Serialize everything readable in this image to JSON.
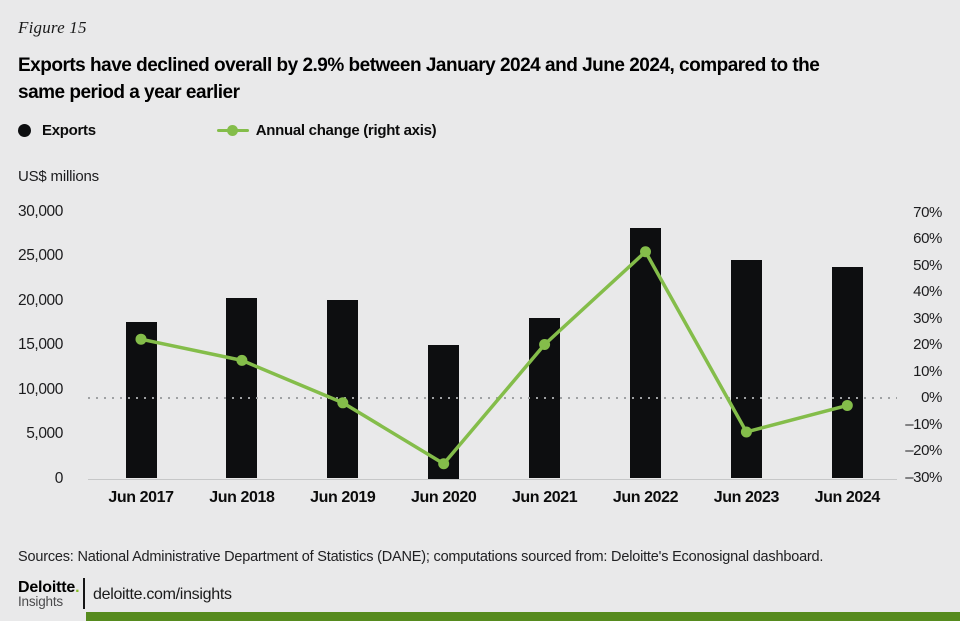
{
  "figure_label": "Figure 15",
  "title_lines": [
    "Exports have declined overall by 2.9% between January 2024 and June 2024, compared to the",
    "same period a year earlier"
  ],
  "legend": {
    "exports_label": "Exports",
    "annual_change_label": "Annual change (right axis)"
  },
  "chart_data": {
    "type": "bar",
    "categories": [
      "Jun 2017",
      "Jun 2018",
      "Jun 2019",
      "Jun 2020",
      "Jun 2021",
      "Jun 2022",
      "Jun 2023",
      "Jun 2024"
    ],
    "series": [
      {
        "name": "Exports",
        "type": "bar",
        "axis": "left",
        "values": [
          17600,
          20300,
          20100,
          15000,
          18000,
          28200,
          24600,
          23800
        ]
      },
      {
        "name": "Annual change (right axis)",
        "type": "line",
        "axis": "right",
        "values": [
          22,
          14,
          -2,
          -25,
          20,
          55,
          -13,
          -3
        ]
      }
    ],
    "left_axis": {
      "label": "US$ millions",
      "min": 0,
      "max": 30000,
      "tick_values": [
        30000,
        25000,
        20000,
        15000,
        10000,
        5000,
        0
      ],
      "tick_labels": [
        "30,000",
        "25,000",
        "20,000",
        "15,000",
        "10,000",
        "5,000",
        "0"
      ]
    },
    "right_axis": {
      "min": -30,
      "max": 70,
      "tick_values": [
        70,
        60,
        50,
        40,
        30,
        20,
        10,
        0,
        -10,
        -20,
        -30
      ],
      "tick_labels": [
        "70%",
        "60%",
        "50%",
        "40%",
        "30%",
        "20%",
        "10%",
        "0%",
        "–10%",
        "–20%",
        "–30%"
      ]
    },
    "zero_line": true,
    "grid": false,
    "legend_position": "top-left",
    "colors": {
      "bar": "#0d0e10",
      "line": "#84bd4a"
    }
  },
  "footer": {
    "sources": "Sources: National Administrative Department of Statistics (DANE); computations sourced from: Deloitte's Econosignal dashboard.",
    "logo_primary": "Deloitte",
    "logo_period": ".",
    "logo_secondary": "Insights",
    "link": "deloitte.com/insights"
  },
  "colors": {
    "background": "#e9e9ea",
    "bar": "#0d0e10",
    "line": "#84bd4a",
    "logo_green": "#86bc25",
    "footer_bar": "#568b1e"
  }
}
